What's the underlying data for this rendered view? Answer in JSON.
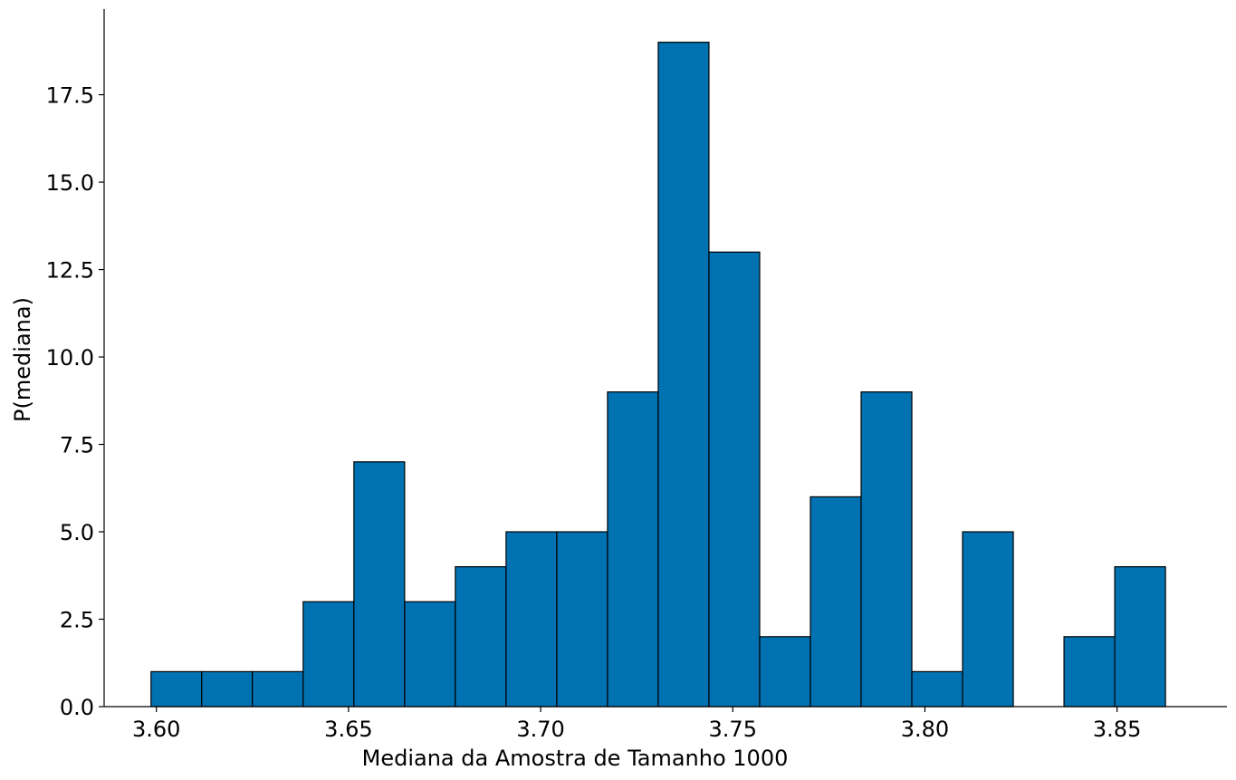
{
  "chart_data": {
    "type": "bar",
    "title": "",
    "xlabel": "Mediana da Amostra de Tamanho 1000",
    "ylabel": "P(mediana)",
    "bar_color": "#0072b2",
    "bin_edges": [
      3.5986,
      3.6118,
      3.625,
      3.6382,
      3.6514,
      3.6646,
      3.6778,
      3.691,
      3.7042,
      3.7174,
      3.7306,
      3.7438,
      3.757,
      3.7702,
      3.7834,
      3.7966,
      3.8098,
      3.823,
      3.8362,
      3.8494,
      3.8626
    ],
    "values": [
      1,
      1,
      1,
      3,
      7,
      3,
      4,
      5,
      5,
      9,
      19,
      13,
      2,
      6,
      9,
      1,
      5,
      0,
      2,
      4
    ],
    "xlim": [
      3.5864,
      3.8786
    ],
    "ylim": [
      0,
      19.95
    ],
    "xticks": [
      3.6,
      3.65,
      3.7,
      3.75,
      3.8,
      3.85
    ],
    "xtick_labels": [
      "3.60",
      "3.65",
      "3.70",
      "3.75",
      "3.80",
      "3.85"
    ],
    "yticks": [
      0,
      2.5,
      5,
      7.5,
      10,
      12.5,
      15,
      17.5
    ],
    "ytick_labels": [
      "0.0",
      "2.5",
      "5.0",
      "7.5",
      "10.0",
      "12.5",
      "15.0",
      "17.5"
    ],
    "grid": false,
    "legend": "none"
  }
}
